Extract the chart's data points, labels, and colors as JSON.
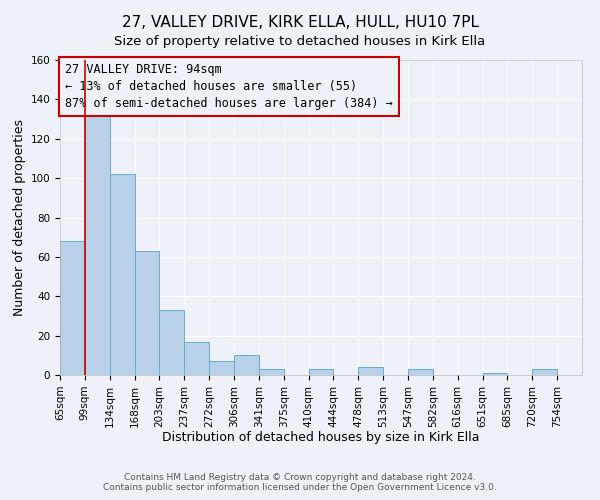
{
  "title": "27, VALLEY DRIVE, KIRK ELLA, HULL, HU10 7PL",
  "subtitle": "Size of property relative to detached houses in Kirk Ella",
  "xlabel": "Distribution of detached houses by size in Kirk Ella",
  "ylabel": "Number of detached properties",
  "bin_labels": [
    "65sqm",
    "99sqm",
    "134sqm",
    "168sqm",
    "203sqm",
    "237sqm",
    "272sqm",
    "306sqm",
    "341sqm",
    "375sqm",
    "410sqm",
    "444sqm",
    "478sqm",
    "513sqm",
    "547sqm",
    "582sqm",
    "616sqm",
    "651sqm",
    "685sqm",
    "720sqm",
    "754sqm"
  ],
  "bar_heights": [
    68,
    133,
    102,
    63,
    33,
    17,
    7,
    10,
    3,
    0,
    3,
    0,
    4,
    0,
    3,
    0,
    0,
    1,
    0,
    3,
    0
  ],
  "bar_color": "#b8d0e8",
  "bar_edgecolor": "#6aaad4",
  "marker_bin": 1,
  "marker_color": "#cc0000",
  "ylim": [
    0,
    160
  ],
  "yticks": [
    0,
    20,
    40,
    60,
    80,
    100,
    120,
    140,
    160
  ],
  "annotation_title": "27 VALLEY DRIVE: 94sqm",
  "annotation_line1": "← 13% of detached houses are smaller (55)",
  "annotation_line2": "87% of semi-detached houses are larger (384) →",
  "annotation_box_color": "#cc0000",
  "footer_line1": "Contains HM Land Registry data © Crown copyright and database right 2024.",
  "footer_line2": "Contains public sector information licensed under the Open Government Licence v3.0.",
  "background_color": "#eef2f8",
  "grid_color": "#ffffff",
  "title_fontsize": 11,
  "subtitle_fontsize": 9.5,
  "axis_label_fontsize": 9,
  "tick_fontsize": 7.5,
  "annotation_fontsize": 8.5,
  "footer_fontsize": 6.5
}
